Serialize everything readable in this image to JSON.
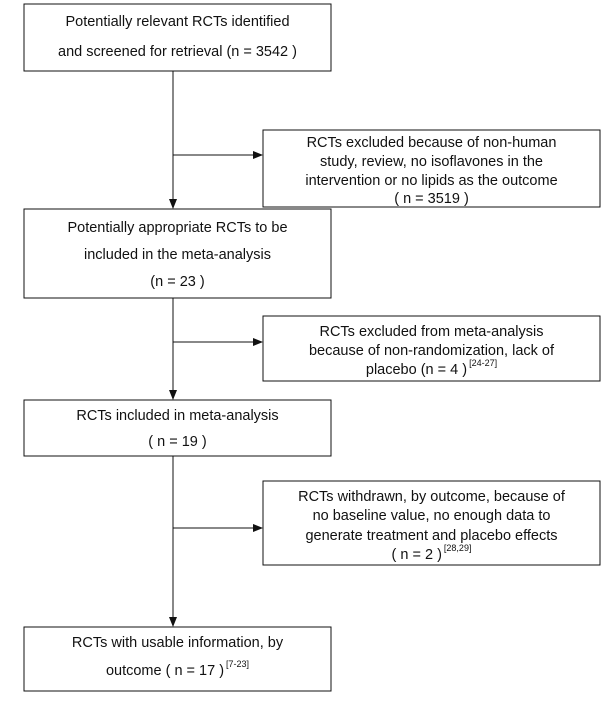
{
  "main_boxes": [
    {
      "lines": [
        "Potentially relevant RCTs identified",
        "and screened for retrieval (n = 3542 )"
      ]
    },
    {
      "lines": [
        "Potentially appropriate RCTs to be",
        "included in the meta-analysis",
        "(n = 23 )"
      ]
    },
    {
      "lines": [
        "RCTs included in meta-analysis",
        "( n = 19 )"
      ]
    },
    {
      "lines": [
        "RCTs with usable information, by",
        "outcome ( n = 17 )"
      ],
      "ref": "[7-23]"
    }
  ],
  "side_boxes": [
    {
      "lines": [
        "RCTs excluded because of non-human",
        "study, review, no isoflavones in the",
        "intervention or no lipids as the outcome",
        "( n = 3519 )"
      ]
    },
    {
      "lines": [
        "RCTs excluded from meta-analysis",
        "because of non-randomization, lack of",
        "placebo (n = 4 )"
      ],
      "ref": "[24-27]"
    },
    {
      "lines": [
        "RCTs withdrawn, by outcome, because of",
        "no baseline value, no enough data to",
        "generate treatment and placebo effects",
        "( n = 2 )"
      ],
      "ref": "[28,29]"
    }
  ]
}
